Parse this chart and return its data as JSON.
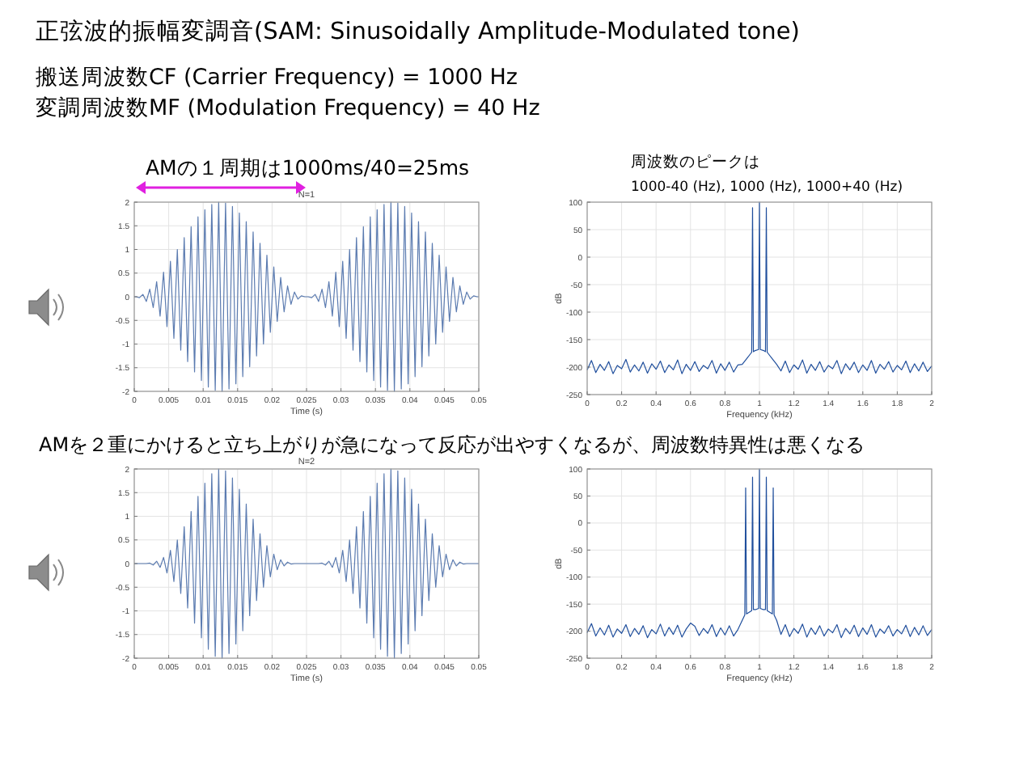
{
  "chart_data": [
    {
      "type": "line",
      "title": "N=1",
      "xlabel": "Time (s)",
      "xlim": [
        0,
        0.05
      ],
      "ylim": [
        -2,
        2
      ],
      "grid": true,
      "xticks": [
        0,
        0.005,
        0.01,
        0.015,
        0.02,
        0.025,
        0.03,
        0.035,
        0.04,
        0.045,
        0.05
      ],
      "yticks": [
        -2,
        -1.5,
        -1,
        -0.5,
        0,
        0.5,
        1,
        1.5,
        2
      ],
      "annotations": [
        "正弦波的振幅変調音(SAM: Sinusoidally Amplitude-Modulated tone)",
        "搬送周波数CF (Carrier Frequency) = 1000 Hz",
        "変調周波数MF (Modulation Frequency) = 40 Hz",
        "AMの１周期は1000ms/40=25ms"
      ],
      "series": [
        {
          "color": "#5b7bb0",
          "x": [
            0,
            0.00025,
            0.00075,
            0.00125,
            0.00175,
            0.00225,
            0.00275,
            0.00325,
            0.00375,
            0.00425,
            0.00475,
            0.00525,
            0.00575,
            0.00625,
            0.00675,
            0.00725,
            0.00775,
            0.00825,
            0.00875,
            0.00925,
            0.00975,
            0.01025,
            0.01075,
            0.01125,
            0.01175,
            0.01225,
            0.01275,
            0.01325,
            0.01375,
            0.01425,
            0.01475,
            0.01525,
            0.01575,
            0.01625,
            0.01675,
            0.01725,
            0.01775,
            0.01825,
            0.01875,
            0.01925,
            0.01975,
            0.02025,
            0.02075,
            0.02125,
            0.02175,
            0.02225,
            0.02275,
            0.02325,
            0.02375,
            0.02425,
            0.02475,
            0.02525,
            0.02575,
            0.02625,
            0.02675,
            0.02725,
            0.02775,
            0.02825,
            0.02875,
            0.02925,
            0.02975,
            0.03025,
            0.03075,
            0.03125,
            0.03175,
            0.03225,
            0.03275,
            0.03325,
            0.03375,
            0.03425,
            0.03475,
            0.03525,
            0.03575,
            0.03625,
            0.03675,
            0.03725,
            0.03775,
            0.03825,
            0.03875,
            0.03925,
            0.03975,
            0.04025,
            0.04075,
            0.04125,
            0.04175,
            0.04225,
            0.04275,
            0.04325,
            0.04375,
            0.04425,
            0.04475,
            0.04525,
            0.04575,
            0.04625,
            0.04675,
            0.04725,
            0.04775,
            0.04825,
            0.04875,
            0.04925,
            0.04975,
            0.05
          ],
          "values": [
            0,
            0.0,
            -0.02,
            0.05,
            -0.1,
            0.16,
            -0.23,
            0.32,
            -0.41,
            0.52,
            -0.63,
            0.75,
            -0.88,
            1.0,
            -1.13,
            1.25,
            -1.37,
            1.48,
            -1.59,
            1.69,
            -1.77,
            1.84,
            -1.91,
            1.95,
            -1.98,
            2.0,
            -2.0,
            1.98,
            -1.95,
            1.91,
            -1.84,
            1.77,
            -1.69,
            1.59,
            -1.48,
            1.37,
            -1.25,
            1.13,
            -1.0,
            0.88,
            -0.75,
            0.63,
            -0.52,
            0.41,
            -0.32,
            0.23,
            -0.16,
            0.1,
            -0.05,
            0.02,
            0.0,
            0.0,
            -0.02,
            0.05,
            -0.1,
            0.16,
            -0.23,
            0.32,
            -0.41,
            0.52,
            -0.63,
            0.75,
            -0.88,
            1.0,
            -1.13,
            1.25,
            -1.37,
            1.48,
            -1.59,
            1.69,
            -1.77,
            1.84,
            -1.91,
            1.95,
            -1.98,
            2.0,
            -2.0,
            1.98,
            -1.95,
            1.91,
            -1.84,
            1.77,
            -1.69,
            1.59,
            -1.48,
            1.37,
            -1.25,
            1.13,
            -1.0,
            0.88,
            -0.75,
            0.63,
            -0.52,
            0.41,
            -0.32,
            0.23,
            -0.16,
            0.1,
            -0.05,
            0.02,
            0.0,
            0
          ]
        }
      ]
    },
    {
      "type": "line",
      "xlabel": "Frequency (kHz)",
      "ylabel": "dB",
      "xlim": [
        0,
        2
      ],
      "ylim": [
        -250,
        100
      ],
      "grid": true,
      "xticks": [
        0,
        0.2,
        0.4,
        0.6,
        0.8,
        1,
        1.2,
        1.4,
        1.6,
        1.8,
        2
      ],
      "yticks": [
        -250,
        -200,
        -150,
        -100,
        -50,
        0,
        50,
        100
      ],
      "annotations": [
        "周波数のピークは",
        "1000-40 (Hz), 1000 (Hz), 1000+40 (Hz)"
      ],
      "series": [
        {
          "color": "#1f4e9c",
          "x": [
            0,
            0.025,
            0.05,
            0.075,
            0.1,
            0.125,
            0.15,
            0.175,
            0.2,
            0.225,
            0.25,
            0.275,
            0.3,
            0.325,
            0.35,
            0.375,
            0.4,
            0.425,
            0.45,
            0.475,
            0.5,
            0.525,
            0.55,
            0.575,
            0.6,
            0.625,
            0.65,
            0.675,
            0.7,
            0.725,
            0.75,
            0.775,
            0.8,
            0.825,
            0.85,
            0.875,
            0.9,
            0.925,
            0.95,
            0.955,
            0.96,
            0.965,
            0.975,
            0.995,
            1.0,
            1.005,
            1.025,
            1.035,
            1.04,
            1.045,
            1.05,
            1.075,
            1.1,
            1.125,
            1.15,
            1.175,
            1.2,
            1.225,
            1.25,
            1.275,
            1.3,
            1.325,
            1.35,
            1.375,
            1.4,
            1.425,
            1.45,
            1.475,
            1.5,
            1.525,
            1.55,
            1.575,
            1.6,
            1.625,
            1.65,
            1.675,
            1.7,
            1.725,
            1.75,
            1.775,
            1.8,
            1.825,
            1.85,
            1.875,
            1.9,
            1.925,
            1.95,
            1.975,
            2.0
          ],
          "values": [
            -205,
            -188,
            -210,
            -195,
            -206,
            -190,
            -212,
            -197,
            -203,
            -186,
            -209,
            -196,
            -207,
            -191,
            -211,
            -194,
            -204,
            -189,
            -210,
            -196,
            -205,
            -187,
            -212,
            -195,
            -206,
            -190,
            -208,
            -197,
            -203,
            -188,
            -211,
            -194,
            -206,
            -191,
            -209,
            -196,
            -195,
            -185,
            -175,
            -173,
            90,
            -172,
            -170,
            -168,
            100,
            -168,
            -170,
            -172,
            90,
            -173,
            -175,
            -185,
            -195,
            -207,
            -189,
            -210,
            -196,
            -204,
            -187,
            -211,
            -195,
            -206,
            -190,
            -209,
            -197,
            -203,
            -188,
            -212,
            -194,
            -205,
            -191,
            -210,
            -196,
            -206,
            -188,
            -211,
            -195,
            -204,
            -190,
            -209,
            -197,
            -205,
            -189,
            -210,
            -194,
            -207,
            -191,
            -208,
            -198
          ]
        }
      ]
    },
    {
      "type": "line",
      "title": "N=2",
      "xlabel": "Time (s)",
      "xlim": [
        0,
        0.05
      ],
      "ylim": [
        -2,
        2
      ],
      "grid": true,
      "xticks": [
        0,
        0.005,
        0.01,
        0.015,
        0.02,
        0.025,
        0.03,
        0.035,
        0.04,
        0.045,
        0.05
      ],
      "yticks": [
        -2,
        -1.5,
        -1,
        -0.5,
        0,
        0.5,
        1,
        1.5,
        2
      ],
      "annotations": [
        "AMを２重にかけると立ち上がりが急になって反応が出やすくなるが、周波数特異性は悪くなる"
      ],
      "series": [
        {
          "color": "#5b7bb0",
          "x": [
            0,
            0.00025,
            0.00075,
            0.00125,
            0.00175,
            0.00225,
            0.00275,
            0.00325,
            0.00375,
            0.00425,
            0.00475,
            0.00525,
            0.00575,
            0.00625,
            0.00675,
            0.00725,
            0.00775,
            0.00825,
            0.00875,
            0.00925,
            0.00975,
            0.01025,
            0.01075,
            0.01125,
            0.01175,
            0.01225,
            0.01275,
            0.01325,
            0.01375,
            0.01425,
            0.01475,
            0.01525,
            0.01575,
            0.01625,
            0.01675,
            0.01725,
            0.01775,
            0.01825,
            0.01875,
            0.01925,
            0.01975,
            0.02025,
            0.02075,
            0.02125,
            0.02175,
            0.02225,
            0.02275,
            0.02325,
            0.02375,
            0.02425,
            0.02475,
            0.02525,
            0.02575,
            0.02625,
            0.02675,
            0.02725,
            0.02775,
            0.02825,
            0.02875,
            0.02925,
            0.02975,
            0.03025,
            0.03075,
            0.03125,
            0.03175,
            0.03225,
            0.03275,
            0.03325,
            0.03375,
            0.03425,
            0.03475,
            0.03525,
            0.03575,
            0.03625,
            0.03675,
            0.03725,
            0.03775,
            0.03825,
            0.03875,
            0.03925,
            0.03975,
            0.04025,
            0.04075,
            0.04125,
            0.04175,
            0.04225,
            0.04275,
            0.04325,
            0.04375,
            0.04425,
            0.04475,
            0.04525,
            0.04575,
            0.04625,
            0.04675,
            0.04725,
            0.04775,
            0.04825,
            0.04875,
            0.04925,
            0.04975,
            0.05
          ],
          "values": [
            0,
            0.0,
            0.0,
            0.0,
            0.0,
            0.01,
            -0.03,
            0.05,
            -0.08,
            0.13,
            -0.2,
            0.28,
            -0.38,
            0.5,
            -0.63,
            0.78,
            -0.94,
            1.1,
            -1.26,
            1.42,
            -1.57,
            1.7,
            -1.81,
            1.9,
            -1.96,
            2.0,
            -2.0,
            1.96,
            -1.9,
            1.81,
            -1.7,
            1.57,
            -1.42,
            1.26,
            -1.1,
            0.94,
            -0.78,
            0.63,
            -0.5,
            0.38,
            -0.28,
            0.2,
            -0.13,
            0.08,
            -0.05,
            0.03,
            -0.01,
            0.0,
            0.0,
            0.0,
            0.0,
            0.0,
            0.0,
            0.0,
            0.0,
            0.01,
            -0.03,
            0.05,
            -0.08,
            0.13,
            -0.2,
            0.28,
            -0.38,
            0.5,
            -0.63,
            0.78,
            -0.94,
            1.1,
            -1.26,
            1.42,
            -1.57,
            1.7,
            -1.81,
            1.9,
            -1.96,
            2.0,
            -2.0,
            1.96,
            -1.9,
            1.81,
            -1.7,
            1.57,
            -1.42,
            1.26,
            -1.1,
            0.94,
            -0.78,
            0.63,
            -0.5,
            0.38,
            -0.28,
            0.2,
            -0.13,
            0.08,
            -0.05,
            0.03,
            -0.01,
            0.0,
            0.0,
            0.0,
            0.0,
            0
          ]
        }
      ]
    },
    {
      "type": "line",
      "xlabel": "Frequency (kHz)",
      "ylabel": "dB",
      "xlim": [
        0,
        2
      ],
      "ylim": [
        -250,
        100
      ],
      "grid": true,
      "xticks": [
        0,
        0.2,
        0.4,
        0.6,
        0.8,
        1,
        1.2,
        1.4,
        1.6,
        1.8,
        2
      ],
      "yticks": [
        -250,
        -200,
        -150,
        -100,
        -50,
        0,
        50,
        100
      ],
      "series": [
        {
          "color": "#1f4e9c",
          "x": [
            0,
            0.025,
            0.05,
            0.075,
            0.1,
            0.125,
            0.15,
            0.175,
            0.2,
            0.225,
            0.25,
            0.275,
            0.3,
            0.325,
            0.35,
            0.375,
            0.4,
            0.425,
            0.45,
            0.475,
            0.5,
            0.525,
            0.55,
            0.575,
            0.6,
            0.625,
            0.65,
            0.675,
            0.7,
            0.725,
            0.75,
            0.775,
            0.8,
            0.825,
            0.85,
            0.875,
            0.9,
            0.915,
            0.92,
            0.925,
            0.94,
            0.955,
            0.96,
            0.965,
            0.98,
            0.995,
            1.0,
            1.005,
            1.02,
            1.035,
            1.04,
            1.045,
            1.06,
            1.075,
            1.08,
            1.085,
            1.1,
            1.125,
            1.15,
            1.175,
            1.2,
            1.225,
            1.25,
            1.275,
            1.3,
            1.325,
            1.35,
            1.375,
            1.4,
            1.425,
            1.45,
            1.475,
            1.5,
            1.525,
            1.55,
            1.575,
            1.6,
            1.625,
            1.65,
            1.675,
            1.7,
            1.725,
            1.75,
            1.775,
            1.8,
            1.825,
            1.85,
            1.875,
            1.9,
            1.925,
            1.95,
            1.975,
            2.0
          ],
          "values": [
            -203,
            -186,
            -209,
            -194,
            -207,
            -189,
            -211,
            -196,
            -204,
            -188,
            -210,
            -195,
            -206,
            -190,
            -212,
            -197,
            -205,
            -187,
            -209,
            -193,
            -206,
            -189,
            -211,
            -196,
            -185,
            -191,
            -208,
            -195,
            -204,
            -188,
            -210,
            -194,
            -207,
            -190,
            -209,
            -197,
            -180,
            -170,
            65,
            -168,
            -165,
            -162,
            85,
            -160,
            -160,
            -158,
            100,
            -158,
            -160,
            -160,
            85,
            -162,
            -165,
            -168,
            65,
            -170,
            -180,
            -206,
            -188,
            -210,
            -195,
            -204,
            -187,
            -211,
            -194,
            -206,
            -190,
            -209,
            -196,
            -203,
            -188,
            -212,
            -195,
            -205,
            -189,
            -210,
            -194,
            -206,
            -188,
            -211,
            -196,
            -204,
            -190,
            -209,
            -197,
            -205,
            -189,
            -210,
            -193,
            -207,
            -190,
            -208,
            -197
          ]
        }
      ]
    }
  ]
}
